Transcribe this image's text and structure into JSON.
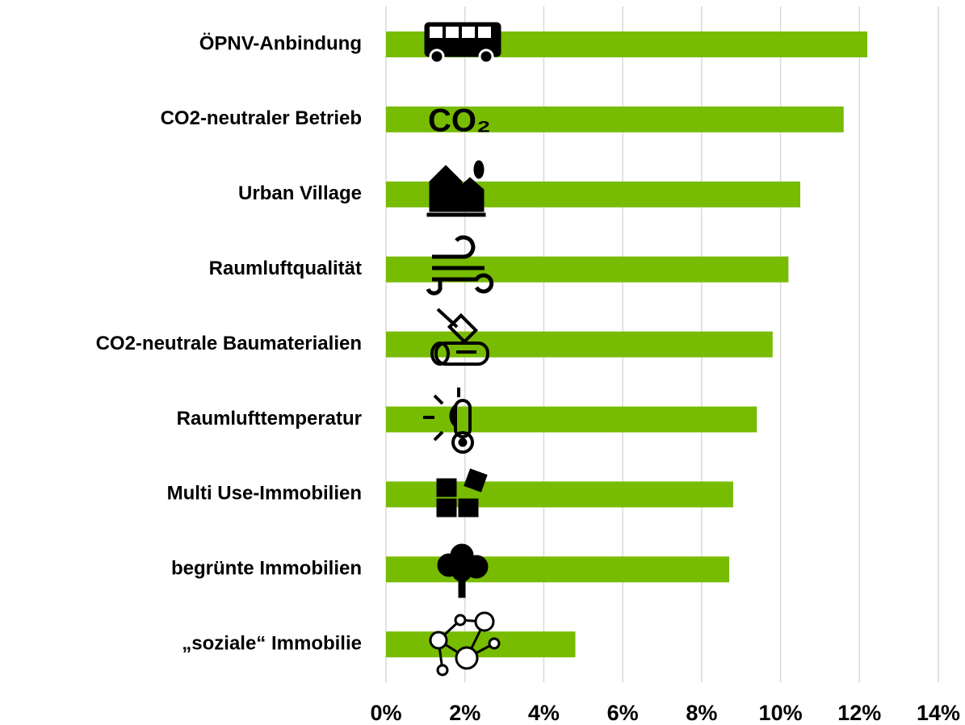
{
  "chart_data": {
    "type": "barh",
    "categories": [
      "ÖPNV-Anbindung",
      "CO2-neutraler Betrieb",
      "Urban Village",
      "Raumluftqualität",
      "CO2-neutrale Baumaterialien",
      "Raumlufttemperatur",
      "Multi Use-Immobilien",
      "begrünte Immobilien",
      "„soziale“ Immobilie"
    ],
    "values": [
      12.2,
      11.6,
      10.5,
      10.2,
      9.8,
      9.4,
      8.8,
      8.7,
      4.8
    ],
    "color": "#77bc00",
    "xlim": [
      0,
      14
    ],
    "xticks": [
      {
        "value": 0,
        "label": "0%"
      },
      {
        "value": 2,
        "label": "2%"
      },
      {
        "value": 4,
        "label": "4%"
      },
      {
        "value": 6,
        "label": "6%"
      },
      {
        "value": 8,
        "label": "8%"
      },
      {
        "value": 10,
        "label": "10%"
      },
      {
        "value": 12,
        "label": "12%"
      },
      {
        "value": 14,
        "label": "14%"
      }
    ],
    "grid": true,
    "annotations": [
      "CO₂"
    ]
  }
}
